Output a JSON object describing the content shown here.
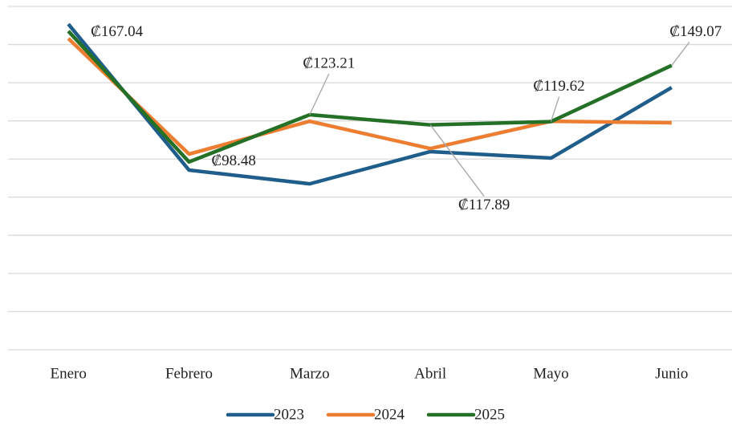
{
  "chart_data": {
    "type": "line",
    "categories": [
      "Enero",
      "Febrero",
      "Marzo",
      "Abril",
      "Mayo",
      "Junio"
    ],
    "series": [
      {
        "name": "2023",
        "color": "#1f5e8a",
        "values": [
          170.7,
          94.2,
          87.0,
          103.9,
          100.5,
          137.5
        ]
      },
      {
        "name": "2024",
        "color": "#ed7d31",
        "values": [
          163.2,
          102.6,
          119.8,
          105.5,
          119.8,
          119.0
        ]
      },
      {
        "name": "2025",
        "color": "#237026",
        "values": [
          167.04,
          98.48,
          123.21,
          117.89,
          119.62,
          149.07
        ],
        "value_labels": [
          "₡167.04",
          "₡98.48",
          "₡123.21",
          "₡117.89",
          "₡119.62",
          "₡149.07"
        ]
      }
    ],
    "ylim": [
      0,
      180
    ],
    "yticks": [
      0,
      20,
      40,
      60,
      80,
      100,
      120,
      140,
      160,
      180
    ],
    "grid": true,
    "legend": "bottom"
  }
}
